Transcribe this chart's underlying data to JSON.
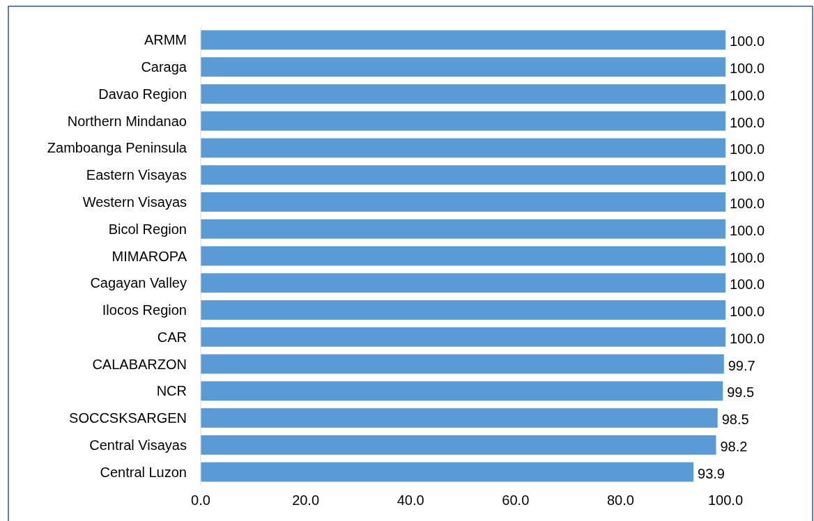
{
  "chart_data": {
    "type": "bar",
    "orientation": "horizontal",
    "categories": [
      "ARMM",
      "Caraga",
      "Davao Region",
      "Northern Mindanao",
      "Zamboanga Peninsula",
      "Eastern Visayas",
      "Western Visayas",
      "Bicol Region",
      "MIMAROPA",
      "Cagayan Valley",
      "Ilocos Region",
      "CAR",
      "CALABARZON",
      "NCR",
      "SOCCSKSARGEN",
      "Central Visayas",
      "Central Luzon"
    ],
    "values": [
      100.0,
      100.0,
      100.0,
      100.0,
      100.0,
      100.0,
      100.0,
      100.0,
      100.0,
      100.0,
      100.0,
      100.0,
      99.7,
      99.5,
      98.5,
      98.2,
      93.9
    ],
    "value_labels": [
      "100.0",
      "100.0",
      "100.0",
      "100.0",
      "100.0",
      "100.0",
      "100.0",
      "100.0",
      "100.0",
      "100.0",
      "100.0",
      "100.0",
      "99.7",
      "99.5",
      "98.5",
      "98.2",
      "93.9"
    ],
    "color": "#5b9bd5",
    "xlim": [
      0,
      100
    ],
    "xticks": [
      {
        "value": 0,
        "label": "0.0"
      },
      {
        "value": 20,
        "label": "20.0"
      },
      {
        "value": 40,
        "label": "40.0"
      },
      {
        "value": 60,
        "label": "60.0"
      },
      {
        "value": 80,
        "label": "80.0"
      },
      {
        "value": 100,
        "label": "100.0"
      }
    ],
    "grid": false
  }
}
